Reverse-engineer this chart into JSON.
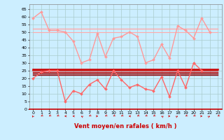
{
  "xlabel": "Vent moyen/en rafales ( km/h )",
  "bg_color": "#cceeff",
  "grid_color": "#aacccc",
  "xlim": [
    -0.5,
    23.5
  ],
  "ylim": [
    0,
    68
  ],
  "yticks": [
    0,
    5,
    10,
    15,
    20,
    25,
    30,
    35,
    40,
    45,
    50,
    55,
    60,
    65
  ],
  "xticks": [
    0,
    1,
    2,
    3,
    4,
    5,
    6,
    7,
    8,
    9,
    10,
    11,
    12,
    13,
    14,
    15,
    16,
    17,
    18,
    19,
    20,
    21,
    22,
    23
  ],
  "series": [
    {
      "color": "#ff9999",
      "linewidth": 1.0,
      "marker": "D",
      "markersize": 2.0,
      "data": [
        59,
        63,
        51,
        51,
        50,
        44,
        30,
        32,
        49,
        34,
        46,
        47,
        50,
        47,
        30,
        32,
        42,
        33,
        54,
        51,
        46,
        59,
        50,
        null
      ]
    },
    {
      "color": "#ffaaaa",
      "linewidth": 1.0,
      "marker": null,
      "markersize": 0,
      "data": [
        52,
        52,
        52,
        52,
        52,
        52,
        52,
        52,
        52,
        52,
        52,
        52,
        52,
        52,
        52,
        52,
        52,
        52,
        52,
        52,
        52,
        52,
        52,
        52
      ]
    },
    {
      "color": "#ffaaaa",
      "linewidth": 0.8,
      "marker": null,
      "markersize": 0,
      "data": [
        50,
        50,
        50,
        50,
        50,
        50,
        50,
        50,
        50,
        50,
        50,
        50,
        50,
        50,
        50,
        50,
        50,
        50,
        50,
        50,
        50,
        50,
        50,
        50
      ]
    },
    {
      "color": "#ff6666",
      "linewidth": 1.0,
      "marker": "D",
      "markersize": 2.0,
      "data": [
        20,
        24,
        25,
        25,
        5,
        12,
        10,
        16,
        19,
        13,
        25,
        19,
        14,
        16,
        13,
        12,
        21,
        8,
        25,
        14,
        30,
        25,
        null,
        null
      ]
    },
    {
      "color": "#cc0000",
      "linewidth": 1.8,
      "marker": null,
      "markersize": 0,
      "data": [
        26,
        26,
        26,
        26,
        26,
        26,
        26,
        26,
        26,
        26,
        26,
        26,
        26,
        26,
        26,
        26,
        26,
        26,
        26,
        26,
        26,
        26,
        26,
        26
      ]
    },
    {
      "color": "#cc2222",
      "linewidth": 1.2,
      "marker": null,
      "markersize": 0,
      "data": [
        25,
        25,
        25,
        25,
        25,
        25,
        25,
        25,
        25,
        25,
        25,
        25,
        25,
        25,
        25,
        25,
        25,
        25,
        25,
        25,
        25,
        25,
        25,
        25
      ]
    },
    {
      "color": "#bb0000",
      "linewidth": 1.0,
      "marker": null,
      "markersize": 0,
      "data": [
        24,
        24,
        24,
        24,
        24,
        24,
        24,
        24,
        24,
        24,
        24,
        24,
        24,
        24,
        24,
        24,
        24,
        24,
        24,
        24,
        24,
        24,
        24,
        24
      ]
    },
    {
      "color": "#990000",
      "linewidth": 1.0,
      "marker": null,
      "markersize": 0,
      "data": [
        23,
        23,
        23,
        23,
        23,
        23,
        23,
        23,
        23,
        23,
        23,
        23,
        23,
        23,
        23,
        23,
        23,
        23,
        23,
        23,
        23,
        23,
        23,
        23
      ]
    },
    {
      "color": "#880000",
      "linewidth": 1.0,
      "marker": null,
      "markersize": 0,
      "data": [
        22,
        22,
        22,
        22,
        22,
        22,
        22,
        22,
        22,
        22,
        22,
        22,
        22,
        22,
        22,
        22,
        22,
        22,
        22,
        22,
        22,
        22,
        22,
        22
      ]
    }
  ],
  "wind_arrows": [
    [
      0,
      200
    ],
    [
      1,
      225
    ],
    [
      2,
      225
    ],
    [
      3,
      225
    ],
    [
      4,
      270
    ],
    [
      5,
      270
    ],
    [
      6,
      315
    ],
    [
      7,
      225
    ],
    [
      8,
      90
    ],
    [
      9,
      225
    ],
    [
      10,
      225
    ],
    [
      11,
      225
    ],
    [
      12,
      270
    ],
    [
      13,
      225
    ],
    [
      14,
      225
    ],
    [
      15,
      225
    ],
    [
      16,
      315
    ],
    [
      17,
      90
    ],
    [
      18,
      45
    ],
    [
      19,
      225
    ],
    [
      20,
      225
    ],
    [
      21,
      90
    ],
    [
      22,
      45
    ],
    [
      23,
      225
    ]
  ]
}
